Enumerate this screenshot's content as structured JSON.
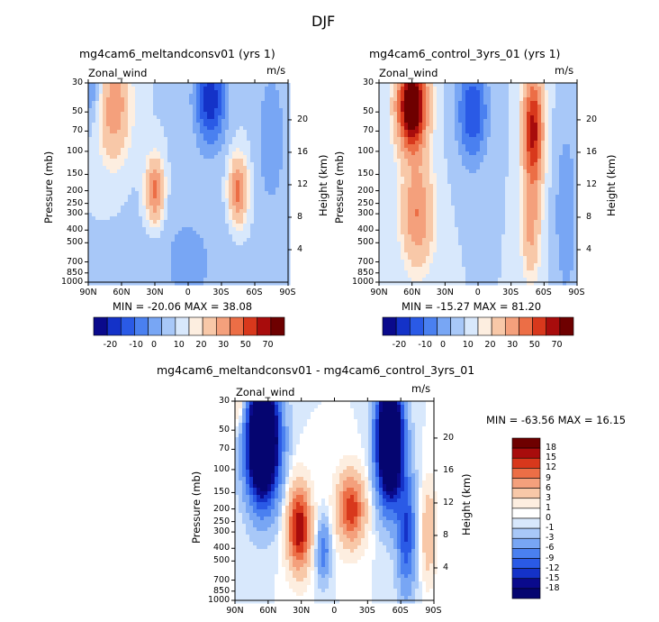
{
  "page": {
    "title": "DJF"
  },
  "panels": [
    {
      "title": "mg4cam6_meltandconsv01 (yrs 1)",
      "left_label": "Zonal_wind",
      "right_label": "m/s",
      "ylabel": "Pressure (mb)",
      "ylabel_right": "Height (km)",
      "stats": "MIN = -20.06   MAX =  38.08",
      "colorbar_labels": [
        "-20",
        "-10",
        "0",
        "10",
        "20",
        "30",
        "50",
        "70"
      ]
    },
    {
      "title": "mg4cam6_control_3yrs_01 (yrs 1)",
      "left_label": "Zonal_wind",
      "right_label": "m/s",
      "ylabel": "Pressure (mb)",
      "ylabel_right": "Height (km)",
      "stats": "MIN = -15.27   MAX =  81.20",
      "colorbar_labels": [
        "-20",
        "-10",
        "0",
        "10",
        "20",
        "30",
        "50",
        "70"
      ]
    },
    {
      "title": "mg4cam6_meltandconsv01 - mg4cam6_control_3yrs_01",
      "left_label": "Zonal_wind",
      "right_label": "m/s",
      "ylabel": "Pressure (mb)",
      "ylabel_right": "Height (km)",
      "stats": "MIN = -63.56   MAX =  16.15",
      "colorbar_labels": [
        "18",
        "15",
        "12",
        "9",
        "6",
        "3",
        "1",
        "0",
        "-1",
        "-3",
        "-6",
        "-9",
        "-12",
        "-15",
        "-18"
      ]
    }
  ],
  "axes": {
    "x_ticks": [
      "90N",
      "60N",
      "30N",
      "0",
      "30S",
      "60S",
      "90S"
    ],
    "p_ticks": [
      "30",
      "50",
      "70",
      "100",
      "150",
      "200",
      "250",
      "300",
      "400",
      "500",
      "700",
      "850",
      "1000"
    ],
    "h_ticks": [
      "20",
      "16",
      "12",
      "8",
      "4"
    ]
  },
  "colors": {
    "main_scale": [
      "#0a0a8c",
      "#1432c8",
      "#2a5ae6",
      "#4a80f0",
      "#78a6f4",
      "#a8c8f8",
      "#d8e8fc",
      "#fdeee0",
      "#f8c8a8",
      "#f4a07c",
      "#ec6e46",
      "#d8381c",
      "#a80c0c",
      "#6e0000"
    ],
    "diff_scale": [
      "#6e0000",
      "#a80c0c",
      "#d8381c",
      "#ec6e46",
      "#f4a07c",
      "#f8c8a8",
      "#fdeee0",
      "#ffffff",
      "#d8e8fc",
      "#a8c8f8",
      "#78a6f4",
      "#4a80f0",
      "#2a5ae6",
      "#1432c8",
      "#0a0a8c",
      "#050570"
    ]
  },
  "chart_data": [
    {
      "type": "heatmap",
      "title": "mg4cam6_meltandconsv01 (yrs 1)",
      "xlabel": "",
      "ylabel": "Pressure (mb)",
      "x": [
        "90N",
        "60N",
        "30N",
        "0",
        "30S",
        "60S",
        "90S"
      ],
      "y": [
        30,
        50,
        70,
        100,
        150,
        200,
        250,
        300,
        400,
        500,
        700,
        850,
        1000
      ],
      "min": -20.06,
      "max": 38.08,
      "units": "m/s",
      "features": [
        {
          "lat": 67,
          "p": 50,
          "value": 25
        },
        {
          "lat": 30,
          "p": 200,
          "value": 35
        },
        {
          "lat": -45,
          "p": 200,
          "value": 35
        },
        {
          "lat": -20,
          "p": 40,
          "value": -20
        },
        {
          "lat": 90,
          "p": 30,
          "value": -10
        }
      ]
    },
    {
      "type": "heatmap",
      "title": "mg4cam6_control_3yrs_01 (yrs 1)",
      "xlabel": "",
      "ylabel": "Pressure (mb)",
      "x": [
        "90N",
        "60N",
        "30N",
        "0",
        "30S",
        "60S",
        "90S"
      ],
      "y": [
        30,
        50,
        70,
        100,
        150,
        200,
        250,
        300,
        400,
        500,
        700,
        850,
        1000
      ],
      "min": -15.27,
      "max": 81.2,
      "units": "m/s",
      "features": [
        {
          "lat": 62,
          "p": 35,
          "value": 75
        },
        {
          "lat": -50,
          "p": 60,
          "value": 50
        },
        {
          "lat": 5,
          "p": 50,
          "value": -15
        }
      ]
    },
    {
      "type": "heatmap",
      "title": "mg4cam6_meltandconsv01 - mg4cam6_control_3yrs_01",
      "xlabel": "",
      "ylabel": "Pressure (mb)",
      "x": [
        "90N",
        "60N",
        "30N",
        "0",
        "30S",
        "60S",
        "90S"
      ],
      "y": [
        30,
        50,
        70,
        100,
        150,
        200,
        250,
        300,
        400,
        500,
        700,
        850,
        1000
      ],
      "min": -63.56,
      "max": 16.15,
      "units": "m/s",
      "features": [
        {
          "lat": 62,
          "p": 60,
          "value": -18
        },
        {
          "lat": -48,
          "p": 60,
          "value": -18
        },
        {
          "lat": 30,
          "p": 250,
          "value": 15
        },
        {
          "lat": -18,
          "p": 200,
          "value": 12
        },
        {
          "lat": 10,
          "p": 400,
          "value": -6
        }
      ]
    }
  ]
}
